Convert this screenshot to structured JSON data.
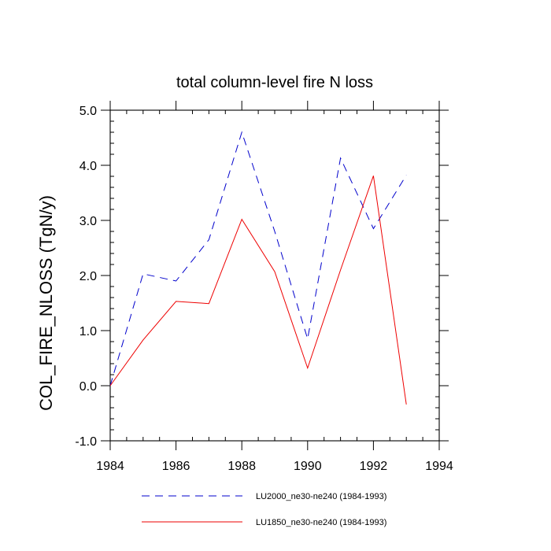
{
  "chart_data": {
    "type": "line",
    "title": "total column-level fire N loss",
    "xlabel": "",
    "ylabel": "COL_FIRE_NLOSS  (TgN/y)",
    "xlim": [
      1984,
      1994
    ],
    "ylim": [
      -1.0,
      5.0
    ],
    "x_ticks": [
      1984,
      1986,
      1988,
      1990,
      1992,
      1994
    ],
    "x_tick_labels": [
      "1984",
      "1986",
      "1988",
      "1990",
      "1992",
      "1994"
    ],
    "y_ticks": [
      -1.0,
      0.0,
      1.0,
      2.0,
      3.0,
      4.0,
      5.0
    ],
    "y_tick_labels": [
      "-1.0",
      "0.0",
      "1.0",
      "2.0",
      "3.0",
      "4.0",
      "5.0"
    ],
    "x_minor_step": 0.5,
    "y_minor_step": 0.2,
    "grid": false,
    "legend_position": "bottom",
    "x": [
      1984,
      1985,
      1986,
      1987,
      1988,
      1989,
      1990,
      1991,
      1992,
      1993
    ],
    "series": [
      {
        "name": "LU2000_ne30-ne240 (1984-1993)",
        "color": "#0000cc",
        "dash": "dashed",
        "values": [
          0.0,
          2.03,
          1.9,
          2.65,
          4.6,
          2.8,
          0.85,
          4.13,
          2.85,
          3.82
        ]
      },
      {
        "name": "LU1850_ne30-ne240 (1984-1993)",
        "color": "#ee0000",
        "dash": "solid",
        "values": [
          0.0,
          0.83,
          1.53,
          1.49,
          3.02,
          2.07,
          0.32,
          2.1,
          3.81,
          -0.34
        ]
      }
    ]
  }
}
